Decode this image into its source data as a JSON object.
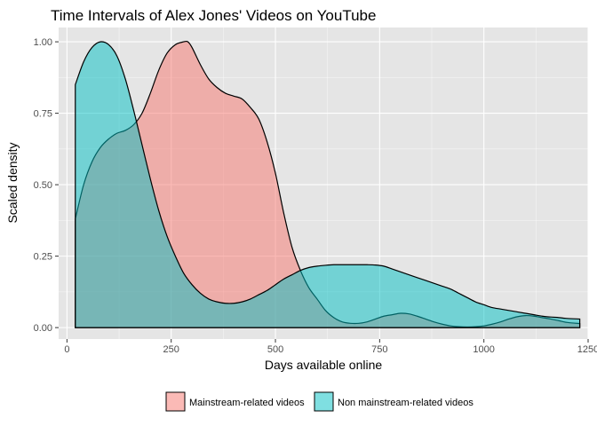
{
  "chart_data": {
    "type": "area",
    "title": "Time Intervals of Alex Jones' Videos on YouTube",
    "xlabel": "Days available online",
    "ylabel": "Scaled density",
    "xlim": [
      -20,
      1250
    ],
    "ylim": [
      -0.04,
      1.05
    ],
    "xticks": [
      0,
      250,
      500,
      750,
      1000,
      1250
    ],
    "yticks": [
      0.0,
      0.25,
      0.5,
      0.75,
      1.0
    ],
    "x_tick_labels": [
      "0",
      "250",
      "500",
      "750",
      "1000",
      "1250"
    ],
    "y_tick_labels": [
      "0.00",
      "0.25",
      "0.50",
      "0.75",
      "1.00"
    ],
    "grid": true,
    "legend_position": "bottom",
    "series": [
      {
        "name": "Mainstream-related videos",
        "color": "#F8766D",
        "x": [
          20,
          40,
          60,
          80,
          100,
          120,
          140,
          160,
          180,
          200,
          220,
          240,
          260,
          280,
          290,
          300,
          320,
          340,
          360,
          380,
          400,
          420,
          440,
          460,
          480,
          500,
          520,
          540,
          560,
          580,
          600,
          620,
          640,
          660,
          680,
          700,
          720,
          740,
          760,
          780,
          800,
          820,
          840,
          860,
          880,
          900,
          920,
          940,
          960,
          980,
          1000,
          1020,
          1040,
          1060,
          1080,
          1100,
          1120,
          1140,
          1160,
          1180,
          1200,
          1230
        ],
        "y": [
          0.38,
          0.5,
          0.58,
          0.63,
          0.66,
          0.68,
          0.69,
          0.71,
          0.75,
          0.82,
          0.9,
          0.96,
          0.99,
          1.0,
          1.0,
          0.98,
          0.92,
          0.87,
          0.84,
          0.82,
          0.81,
          0.8,
          0.77,
          0.73,
          0.65,
          0.54,
          0.4,
          0.28,
          0.2,
          0.14,
          0.1,
          0.06,
          0.035,
          0.02,
          0.015,
          0.015,
          0.02,
          0.03,
          0.04,
          0.045,
          0.05,
          0.048,
          0.04,
          0.03,
          0.02,
          0.012,
          0.006,
          0.003,
          0.002,
          0.003,
          0.006,
          0.012,
          0.02,
          0.03,
          0.038,
          0.042,
          0.04,
          0.035,
          0.03,
          0.024,
          0.018,
          0.014
        ]
      },
      {
        "name": "Non mainstream-related videos",
        "color": "#00BFC4",
        "x": [
          20,
          40,
          60,
          80,
          100,
          120,
          140,
          160,
          180,
          200,
          220,
          240,
          260,
          280,
          300,
          320,
          340,
          360,
          380,
          400,
          420,
          440,
          460,
          480,
          500,
          520,
          540,
          560,
          580,
          600,
          620,
          640,
          660,
          680,
          700,
          720,
          740,
          760,
          780,
          800,
          820,
          840,
          860,
          880,
          900,
          920,
          940,
          960,
          980,
          1000,
          1020,
          1040,
          1060,
          1080,
          1100,
          1120,
          1140,
          1160,
          1180,
          1200,
          1230
        ],
        "y": [
          0.85,
          0.93,
          0.98,
          1.0,
          0.99,
          0.95,
          0.87,
          0.76,
          0.64,
          0.52,
          0.41,
          0.32,
          0.25,
          0.19,
          0.15,
          0.12,
          0.1,
          0.09,
          0.085,
          0.085,
          0.09,
          0.1,
          0.115,
          0.13,
          0.15,
          0.17,
          0.185,
          0.2,
          0.21,
          0.215,
          0.218,
          0.22,
          0.22,
          0.22,
          0.22,
          0.22,
          0.219,
          0.215,
          0.205,
          0.195,
          0.185,
          0.175,
          0.165,
          0.155,
          0.145,
          0.135,
          0.12,
          0.105,
          0.09,
          0.08,
          0.07,
          0.065,
          0.06,
          0.055,
          0.05,
          0.045,
          0.04,
          0.037,
          0.035,
          0.032,
          0.03
        ]
      }
    ]
  }
}
